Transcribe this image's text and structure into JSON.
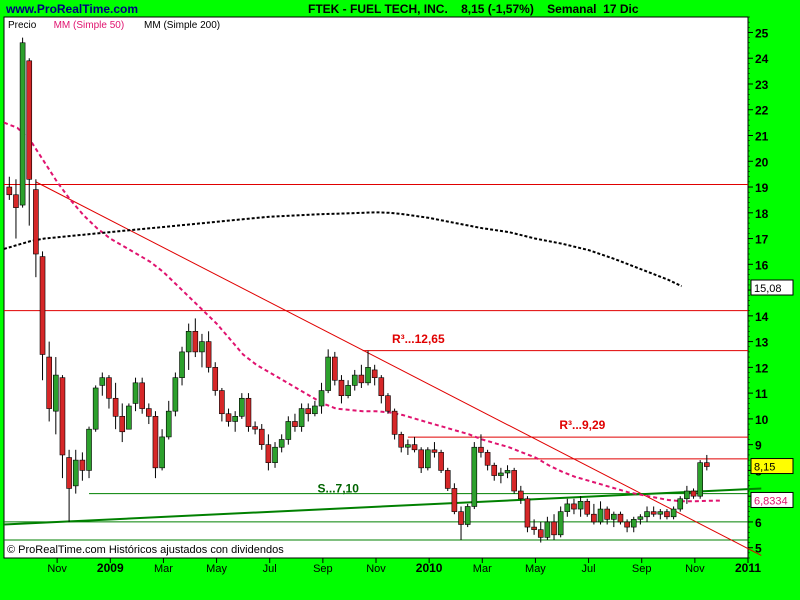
{
  "header": {
    "site": "www.ProRealTime.com",
    "title": "FTEK - FUEL TECH, INC.    8,15 (-1,57%)    Semanal  17 Dic"
  },
  "chart_data": {
    "type": "candlestick",
    "legend": [
      {
        "label": "Precio",
        "color": "#000000"
      },
      {
        "label": "MM (Simple 50)",
        "color": "#e0136f"
      },
      {
        "label": "MM (Simple 200)",
        "color": "#000000"
      }
    ],
    "y_ticks": [
      5,
      6,
      7,
      8,
      9,
      10,
      11,
      12,
      13,
      14,
      15,
      16,
      17,
      18,
      19,
      20,
      21,
      22,
      23,
      24,
      25
    ],
    "ylim": [
      4.6,
      25.6
    ],
    "x_ticks": [
      {
        "label": "Nov",
        "x": 2
      },
      {
        "label": "2009",
        "x": 4,
        "bold": true
      },
      {
        "label": "Mar",
        "x": 6
      },
      {
        "label": "May",
        "x": 8
      },
      {
        "label": "Jul",
        "x": 10
      },
      {
        "label": "Sep",
        "x": 12
      },
      {
        "label": "Nov",
        "x": 14
      },
      {
        "label": "2010",
        "x": 16,
        "bold": true
      },
      {
        "label": "Mar",
        "x": 18
      },
      {
        "label": "May",
        "x": 20
      },
      {
        "label": "Jul",
        "x": 22
      },
      {
        "label": "Sep",
        "x": 24
      },
      {
        "label": "Nov",
        "x": 26
      },
      {
        "label": "2011",
        "x": 28,
        "bold": true
      }
    ],
    "xlim": [
      0,
      28
    ],
    "price_badges": [
      {
        "label": "15,08",
        "value": 15.08,
        "bg": "#ffffff",
        "color": "#000000"
      },
      {
        "label": "8,15",
        "value": 8.15,
        "bg": "#ffff00",
        "color": "#000000"
      },
      {
        "label": "6,8334",
        "value": 6.8334,
        "bg": "#ffffff",
        "color": "#e0136f"
      }
    ],
    "annotations": [
      {
        "text": "R³...12,65",
        "x": 14.6,
        "y": 12.95,
        "color": "#e00000"
      },
      {
        "text": "R³...9,29",
        "x": 20.9,
        "y": 9.6,
        "color": "#e00000"
      },
      {
        "text": "S...7,10",
        "x": 11.8,
        "y": 7.15,
        "color": "#006400"
      }
    ],
    "horizontal_lines": [
      {
        "value": 19.1,
        "from": 0,
        "to": 28,
        "color": "#e00000"
      },
      {
        "value": 14.2,
        "from": 0,
        "to": 28,
        "color": "#e00000"
      },
      {
        "value": 12.65,
        "from": 13.5,
        "to": 28,
        "color": "#e00000"
      },
      {
        "value": 9.29,
        "from": 15.2,
        "to": 28,
        "color": "#e00000"
      },
      {
        "value": 8.45,
        "from": 19.0,
        "to": 28,
        "color": "#e00000"
      },
      {
        "value": 7.1,
        "from": 3.2,
        "to": 28,
        "color": "#008000"
      },
      {
        "value": 6.0,
        "from": 0,
        "to": 28,
        "color": "#008000"
      },
      {
        "value": 5.3,
        "from": 0,
        "to": 28,
        "color": "#008000"
      }
    ],
    "trend_lines": [
      {
        "x1": 1.2,
        "y1": 19.2,
        "x2": 28.5,
        "y2": 4.7,
        "color": "#e00000"
      },
      {
        "x1": 0,
        "y1": 5.9,
        "x2": 28.5,
        "y2": 7.3,
        "color": "#008000",
        "width": 2
      }
    ],
    "series": [
      {
        "name": "MM (Simple 50)",
        "color": "#e0136f",
        "dash": "4,3",
        "points": [
          [
            0,
            21.5
          ],
          [
            0.5,
            21.3
          ],
          [
            1,
            20.8
          ],
          [
            1.5,
            20
          ],
          [
            2,
            19.2
          ],
          [
            2.5,
            18.5
          ],
          [
            3,
            17.9
          ],
          [
            3.5,
            17.4
          ],
          [
            4,
            17
          ],
          [
            4.5,
            16.7
          ],
          [
            5,
            16.4
          ],
          [
            5.5,
            16.1
          ],
          [
            6,
            15.7
          ],
          [
            6.5,
            15.2
          ],
          [
            7,
            14.7
          ],
          [
            7.5,
            14.2
          ],
          [
            8,
            13.7
          ],
          [
            8.5,
            13.1
          ],
          [
            9,
            12.5
          ],
          [
            9.5,
            12.1
          ],
          [
            10,
            11.8
          ],
          [
            10.5,
            11.5
          ],
          [
            11,
            11.2
          ],
          [
            11.5,
            10.9
          ],
          [
            12,
            10.6
          ],
          [
            12.5,
            10.4
          ],
          [
            13,
            10.35
          ],
          [
            13.5,
            10.3
          ],
          [
            14,
            10.3
          ],
          [
            14.5,
            10.25
          ],
          [
            15,
            10.15
          ],
          [
            15.5,
            10.0
          ],
          [
            16,
            9.85
          ],
          [
            16.5,
            9.7
          ],
          [
            17,
            9.55
          ],
          [
            17.5,
            9.4
          ],
          [
            18,
            9.2
          ],
          [
            18.5,
            9.05
          ],
          [
            19,
            8.9
          ],
          [
            19.5,
            8.7
          ],
          [
            20,
            8.5
          ],
          [
            20.5,
            8.2
          ],
          [
            21,
            7.95
          ],
          [
            21.5,
            7.75
          ],
          [
            22,
            7.6
          ],
          [
            22.5,
            7.45
          ],
          [
            23,
            7.3
          ],
          [
            23.5,
            7.15
          ],
          [
            24,
            7.05
          ],
          [
            24.5,
            6.95
          ],
          [
            25,
            6.85
          ],
          [
            25.5,
            6.8
          ],
          [
            26,
            6.8
          ],
          [
            26.5,
            6.82
          ],
          [
            27,
            6.83
          ]
        ]
      },
      {
        "name": "MM (Simple 200)",
        "color": "#000000",
        "dash": "3,2",
        "points": [
          [
            0,
            16.6
          ],
          [
            0.5,
            16.75
          ],
          [
            1,
            16.9
          ],
          [
            1.5,
            17.0
          ],
          [
            2,
            17.05
          ],
          [
            3,
            17.15
          ],
          [
            4,
            17.25
          ],
          [
            5,
            17.35
          ],
          [
            6,
            17.45
          ],
          [
            7,
            17.55
          ],
          [
            8,
            17.65
          ],
          [
            9,
            17.75
          ],
          [
            10,
            17.85
          ],
          [
            11,
            17.9
          ],
          [
            12,
            17.95
          ],
          [
            13,
            17.98
          ],
          [
            14,
            18.02
          ],
          [
            14.5,
            18.0
          ],
          [
            15,
            17.95
          ],
          [
            16,
            17.8
          ],
          [
            17,
            17.6
          ],
          [
            18,
            17.4
          ],
          [
            19,
            17.25
          ],
          [
            20,
            17.0
          ],
          [
            21,
            16.8
          ],
          [
            22,
            16.55
          ],
          [
            23,
            16.2
          ],
          [
            24,
            15.8
          ],
          [
            25,
            15.4
          ],
          [
            25.5,
            15.15
          ]
        ]
      }
    ],
    "candles": [
      [
        0.2,
        19.0,
        19.4,
        18.5,
        18.7
      ],
      [
        0.45,
        18.7,
        19.3,
        17.0,
        18.2
      ],
      [
        0.7,
        18.3,
        24.8,
        18.2,
        24.6
      ],
      [
        0.95,
        23.9,
        24.0,
        17.5,
        19.3
      ],
      [
        1.2,
        18.9,
        19.3,
        15.5,
        16.4
      ],
      [
        1.45,
        16.3,
        16.5,
        11.5,
        12.5
      ],
      [
        1.7,
        12.4,
        13.0,
        9.9,
        10.4
      ],
      [
        1.95,
        10.3,
        12.4,
        9.4,
        11.7
      ],
      [
        2.2,
        11.6,
        11.7,
        7.7,
        8.6
      ],
      [
        2.45,
        8.5,
        8.8,
        6.0,
        7.3
      ],
      [
        2.7,
        7.4,
        8.8,
        7.1,
        8.4
      ],
      [
        2.95,
        8.4,
        8.7,
        7.6,
        8.0
      ],
      [
        3.2,
        8.0,
        9.7,
        7.7,
        9.6
      ],
      [
        3.45,
        9.6,
        11.3,
        9.5,
        11.2
      ],
      [
        3.7,
        11.3,
        11.8,
        10.9,
        11.6
      ],
      [
        3.95,
        11.6,
        11.7,
        10.4,
        10.8
      ],
      [
        4.2,
        10.8,
        11.4,
        9.6,
        10.1
      ],
      [
        4.45,
        10.1,
        10.6,
        9.1,
        9.5
      ],
      [
        4.7,
        9.6,
        10.6,
        9.6,
        10.5
      ],
      [
        4.95,
        10.6,
        11.6,
        10.3,
        11.4
      ],
      [
        5.2,
        11.4,
        11.6,
        10.2,
        10.4
      ],
      [
        5.45,
        10.4,
        10.6,
        9.8,
        10.1
      ],
      [
        5.7,
        10.1,
        10.3,
        7.7,
        8.1
      ],
      [
        5.95,
        8.1,
        9.6,
        8.0,
        9.3
      ],
      [
        6.2,
        9.3,
        10.7,
        9.2,
        10.3
      ],
      [
        6.45,
        10.3,
        11.8,
        10.1,
        11.6
      ],
      [
        6.7,
        11.6,
        12.8,
        11.3,
        12.6
      ],
      [
        6.95,
        12.6,
        13.7,
        11.9,
        13.4
      ],
      [
        7.2,
        13.4,
        13.9,
        12.4,
        12.6
      ],
      [
        7.45,
        12.6,
        13.3,
        12.0,
        13.0
      ],
      [
        7.7,
        13.0,
        13.4,
        11.8,
        12.0
      ],
      [
        7.95,
        12.0,
        12.2,
        10.9,
        11.1
      ],
      [
        8.2,
        11.1,
        11.2,
        9.9,
        10.2
      ],
      [
        8.45,
        10.2,
        10.4,
        9.7,
        9.9
      ],
      [
        8.7,
        9.9,
        10.3,
        9.5,
        10.1
      ],
      [
        8.95,
        10.1,
        11.0,
        10.0,
        10.8
      ],
      [
        9.2,
        10.8,
        11.0,
        9.5,
        9.7
      ],
      [
        9.45,
        9.7,
        9.9,
        9.4,
        9.6
      ],
      [
        9.7,
        9.6,
        9.8,
        8.8,
        9.0
      ],
      [
        9.95,
        9.0,
        9.4,
        8.0,
        8.3
      ],
      [
        10.2,
        8.3,
        9.1,
        8.1,
        8.9
      ],
      [
        10.45,
        8.9,
        9.4,
        8.7,
        9.2
      ],
      [
        10.7,
        9.2,
        10.1,
        9.0,
        9.9
      ],
      [
        10.95,
        9.9,
        10.2,
        9.5,
        9.7
      ],
      [
        11.2,
        9.7,
        10.6,
        9.5,
        10.4
      ],
      [
        11.45,
        10.4,
        10.6,
        9.9,
        10.2
      ],
      [
        11.7,
        10.2,
        10.7,
        10.1,
        10.5
      ],
      [
        11.95,
        10.5,
        11.4,
        10.2,
        11.1
      ],
      [
        12.2,
        11.1,
        12.7,
        11.0,
        12.4
      ],
      [
        12.45,
        12.4,
        12.6,
        11.3,
        11.5
      ],
      [
        12.7,
        11.5,
        11.7,
        10.6,
        10.9
      ],
      [
        12.95,
        10.9,
        11.5,
        10.8,
        11.3
      ],
      [
        13.2,
        11.3,
        11.9,
        11.1,
        11.7
      ],
      [
        13.45,
        11.7,
        12.1,
        11.2,
        11.4
      ],
      [
        13.7,
        11.4,
        12.65,
        11.3,
        12.0
      ],
      [
        13.95,
        11.9,
        12.1,
        11.3,
        11.6
      ],
      [
        14.2,
        11.6,
        11.7,
        10.6,
        10.9
      ],
      [
        14.45,
        10.9,
        11.0,
        10.2,
        10.3
      ],
      [
        14.7,
        10.3,
        10.4,
        9.2,
        9.4
      ],
      [
        14.95,
        9.4,
        9.5,
        8.7,
        8.9
      ],
      [
        15.2,
        8.9,
        9.2,
        8.6,
        9.0
      ],
      [
        15.45,
        9.0,
        9.3,
        8.7,
        8.8
      ],
      [
        15.7,
        8.8,
        8.9,
        7.9,
        8.1
      ],
      [
        15.95,
        8.1,
        8.9,
        8.0,
        8.8
      ],
      [
        16.2,
        8.8,
        9.1,
        8.5,
        8.7
      ],
      [
        16.45,
        8.7,
        8.8,
        7.9,
        8.0
      ],
      [
        16.7,
        8.0,
        8.1,
        7.2,
        7.3
      ],
      [
        16.95,
        7.3,
        7.5,
        6.3,
        6.4
      ],
      [
        17.2,
        6.4,
        6.6,
        5.3,
        5.9
      ],
      [
        17.45,
        5.9,
        6.7,
        5.8,
        6.6
      ],
      [
        17.7,
        6.6,
        9.1,
        6.5,
        8.9
      ],
      [
        17.95,
        8.9,
        9.4,
        8.5,
        8.7
      ],
      [
        18.2,
        8.7,
        8.8,
        8.0,
        8.2
      ],
      [
        18.45,
        8.2,
        8.3,
        7.6,
        7.8
      ],
      [
        18.7,
        7.8,
        8.1,
        7.5,
        7.9
      ],
      [
        18.95,
        7.9,
        8.2,
        7.7,
        8.0
      ],
      [
        19.2,
        8.0,
        8.1,
        7.1,
        7.2
      ],
      [
        19.45,
        7.2,
        7.4,
        6.7,
        6.9
      ],
      [
        19.7,
        6.9,
        7.0,
        5.6,
        5.8
      ],
      [
        19.95,
        5.8,
        6.1,
        5.5,
        5.7
      ],
      [
        20.2,
        5.7,
        6.0,
        5.2,
        5.4
      ],
      [
        20.45,
        5.4,
        6.2,
        5.3,
        6.0
      ],
      [
        20.7,
        6.0,
        6.3,
        5.3,
        5.5
      ],
      [
        20.95,
        5.5,
        6.6,
        5.4,
        6.4
      ],
      [
        21.2,
        6.4,
        6.9,
        6.2,
        6.7
      ],
      [
        21.45,
        6.7,
        6.9,
        6.3,
        6.5
      ],
      [
        21.7,
        6.5,
        7.0,
        6.2,
        6.8
      ],
      [
        21.95,
        6.8,
        6.9,
        6.2,
        6.3
      ],
      [
        22.2,
        6.3,
        6.7,
        5.9,
        6.0
      ],
      [
        22.45,
        6.0,
        6.8,
        5.9,
        6.5
      ],
      [
        22.7,
        6.5,
        6.6,
        5.9,
        6.1
      ],
      [
        22.95,
        6.1,
        6.4,
        5.8,
        6.3
      ],
      [
        23.2,
        6.3,
        6.4,
        5.9,
        6.0
      ],
      [
        23.45,
        6.0,
        6.1,
        5.6,
        5.8
      ],
      [
        23.7,
        5.8,
        6.2,
        5.6,
        6.1
      ],
      [
        23.95,
        6.1,
        6.3,
        5.9,
        6.2
      ],
      [
        24.2,
        6.2,
        6.6,
        6.0,
        6.4
      ],
      [
        24.45,
        6.4,
        6.6,
        6.2,
        6.3
      ],
      [
        24.7,
        6.3,
        6.5,
        6.1,
        6.4
      ],
      [
        24.95,
        6.4,
        6.5,
        6.1,
        6.2
      ],
      [
        25.2,
        6.2,
        6.6,
        6.1,
        6.5
      ],
      [
        25.45,
        6.5,
        7.0,
        6.4,
        6.9
      ],
      [
        25.7,
        6.9,
        7.4,
        6.7,
        7.2
      ],
      [
        25.95,
        7.2,
        7.3,
        6.9,
        7.0
      ],
      [
        26.2,
        7.0,
        8.4,
        6.9,
        8.3
      ],
      [
        26.45,
        8.3,
        8.6,
        8.0,
        8.15
      ]
    ],
    "footer": "© ProRealTime.com  Históricos ajustados con dividendos"
  }
}
